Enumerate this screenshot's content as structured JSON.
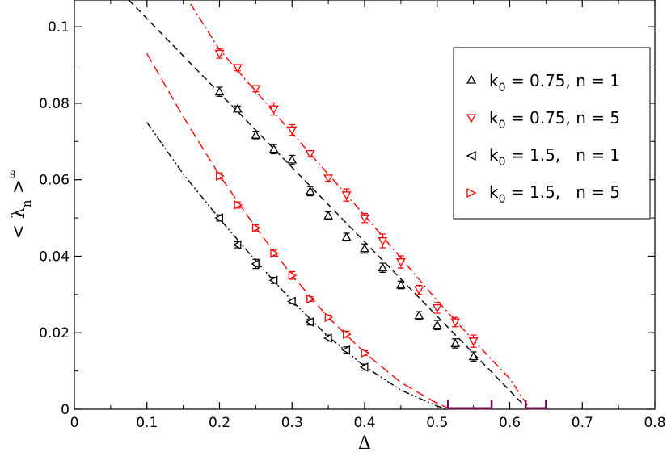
{
  "chart_data": {
    "type": "scatter",
    "xlabel": "Δ",
    "ylabel": {
      "prefix": "< λ",
      "subscript": "n",
      "suffix": " >",
      "superscript": "∞"
    },
    "xlim": [
      0,
      0.8
    ],
    "ylim": [
      0,
      0.107
    ],
    "xticks": [
      0,
      0.1,
      0.2,
      0.3,
      0.4,
      0.5,
      0.6,
      0.7,
      0.8
    ],
    "xtick_labels": [
      "0",
      "0.1",
      "0.2",
      "0.3",
      "0.4",
      "0.5",
      "0.6",
      "0.7",
      "0.8"
    ],
    "yticks": [
      0,
      0.02,
      0.04,
      0.06,
      0.08,
      0.1
    ],
    "ytick_labels": [
      "0",
      "0.02",
      "0.04",
      "0.06",
      "0.08",
      "0.1"
    ],
    "grid": false,
    "legend_position": "top-right",
    "series": [
      {
        "legend_k": "0.75,",
        "legend_n": "n = 1",
        "marker": "triangle-up",
        "color": "#000000",
        "x": [
          0.2,
          0.225,
          0.25,
          0.275,
          0.3,
          0.325,
          0.35,
          0.375,
          0.4,
          0.425,
          0.45,
          0.475,
          0.5,
          0.525,
          0.55
        ],
        "y": [
          0.083,
          0.0785,
          0.0717,
          0.068,
          0.0652,
          0.057,
          0.0506,
          0.045,
          0.042,
          0.037,
          0.0325,
          0.0245,
          0.022,
          0.0172,
          0.0138
        ],
        "err": [
          0.0012,
          0.0008,
          0.001,
          0.0012,
          0.0012,
          0.0012,
          0.001,
          0.001,
          0.0012,
          0.0012,
          0.001,
          0.001,
          0.0012,
          0.0012,
          0.0012
        ]
      },
      {
        "legend_k": "0.75,",
        "legend_n": "n = 5",
        "marker": "triangle-down",
        "color": "#ff0000",
        "x": [
          0.2,
          0.225,
          0.25,
          0.275,
          0.3,
          0.325,
          0.35,
          0.375,
          0.4,
          0.425,
          0.45,
          0.475,
          0.5,
          0.525,
          0.55
        ],
        "y": [
          0.093,
          0.0893,
          0.0838,
          0.0785,
          0.073,
          0.0668,
          0.0604,
          0.056,
          0.05,
          0.044,
          0.0385,
          0.0312,
          0.0265,
          0.0228,
          0.0178
        ],
        "err": [
          0.0012,
          0.0008,
          0.0008,
          0.0016,
          0.0014,
          0.0008,
          0.0008,
          0.0016,
          0.0012,
          0.0018,
          0.0016,
          0.0012,
          0.0014,
          0.0012,
          0.0016
        ]
      },
      {
        "legend_k": "1.5,",
        "legend_n": "n = 1",
        "marker": "triangle-left",
        "color": "#000000",
        "x": [
          0.2,
          0.225,
          0.25,
          0.275,
          0.3,
          0.325,
          0.35,
          0.375,
          0.4
        ],
        "y": [
          0.05,
          0.043,
          0.038,
          0.0337,
          0.0282,
          0.0228,
          0.0186,
          0.0155,
          0.011
        ],
        "err": [
          0.0008,
          0.0008,
          0.0012,
          0.0008,
          0.0006,
          0.0008,
          0.0008,
          0.0008,
          0.0008
        ]
      },
      {
        "legend_k": "1.5,",
        "legend_n": "n = 5",
        "marker": "triangle-right",
        "color": "#ff0000",
        "x": [
          0.2,
          0.225,
          0.25,
          0.275,
          0.3,
          0.325,
          0.35,
          0.375,
          0.4
        ],
        "y": [
          0.061,
          0.0534,
          0.0474,
          0.0408,
          0.035,
          0.0288,
          0.024,
          0.0196,
          0.0147
        ],
        "err": [
          0.0008,
          0.0008,
          0.0008,
          0.0008,
          0.001,
          0.0006,
          0.0006,
          0.0008,
          0.0006
        ]
      }
    ],
    "fit_lines": [
      {
        "style": "dashed",
        "color": "#000000",
        "x": [
          0.075,
          0.625
        ],
        "y": [
          0.107,
          0.0
        ]
      },
      {
        "style": "dash-dot",
        "color": "#ff0000",
        "x": [
          0.16,
          0.2,
          0.3,
          0.4,
          0.5,
          0.55,
          0.6,
          0.628
        ],
        "y": [
          0.106,
          0.094,
          0.0722,
          0.0507,
          0.0284,
          0.018,
          0.008,
          0.0
        ]
      },
      {
        "style": "long-dashed",
        "color": "#ff0000",
        "x": [
          0.1,
          0.15,
          0.2,
          0.25,
          0.3,
          0.35,
          0.4,
          0.45,
          0.5,
          0.52
        ],
        "y": [
          0.093,
          0.0765,
          0.0612,
          0.0475,
          0.035,
          0.024,
          0.0148,
          0.007,
          0.0015,
          0.0
        ]
      },
      {
        "style": "dash-dot-dot",
        "color": "#000000",
        "x": [
          0.1,
          0.15,
          0.2,
          0.25,
          0.3,
          0.35,
          0.4,
          0.45,
          0.5,
          0.515
        ],
        "y": [
          0.075,
          0.0615,
          0.0498,
          0.0388,
          0.0283,
          0.019,
          0.0112,
          0.005,
          0.0008,
          0.0
        ]
      }
    ],
    "threshold_bars": [
      {
        "color": "#6b0f4f",
        "x_start": 0.515,
        "x_end": 0.575,
        "y": 0.0,
        "cap_height": 0.0012
      },
      {
        "color": "#6b0f4f",
        "x_start": 0.622,
        "x_end": 0.65,
        "y": 0.0,
        "cap_height": 0.0012
      }
    ]
  }
}
